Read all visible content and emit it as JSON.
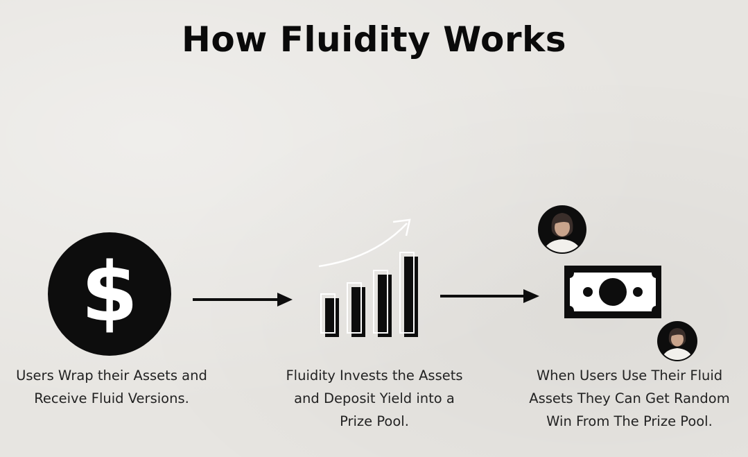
{
  "title": "How Fluidity Works",
  "steps": [
    {
      "caption_lines": [
        "Users Wrap their Assets and",
        "Receive Fluid Versions."
      ],
      "icon": "dollar-circle-icon"
    },
    {
      "caption_lines": [
        "Fluidity Invests the Assets",
        "and Deposit Yield into a",
        "Prize Pool."
      ],
      "icon": "bar-chart-growth-icon"
    },
    {
      "caption_lines": [
        "When Users Use Their Fluid",
        "Assets They Can Get Random",
        "Win From The Prize Pool."
      ],
      "icon": "banknote-icon"
    }
  ],
  "dollar_symbol": "$",
  "colors": {
    "background": "#e7e5e1",
    "ink": "#0d0d0d",
    "text": "#222222"
  }
}
